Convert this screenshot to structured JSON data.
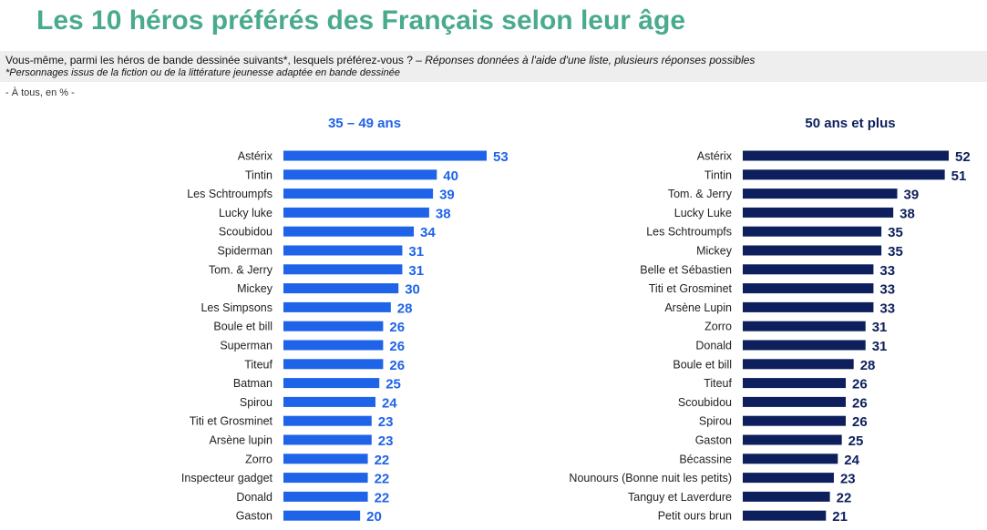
{
  "title": "Les 10 héros préférés des Français selon leur âge",
  "question": {
    "text": "Vous-même, parmi les héros de bande dessinée suivants*, lesquels préférez-vous ? –",
    "instruction": "Réponses données à l'aide d'une liste, plusieurs réponses possibles",
    "footnote": "*Personnages issus de la fiction ou de la littérature jeunesse adaptée en bande dessinée"
  },
  "base": "- À tous, en % -",
  "colors": {
    "left": "#1f63e8",
    "right": "#0d1f5c",
    "title": "#4aaa8e"
  },
  "chart_data": [
    {
      "type": "bar",
      "orientation": "horizontal",
      "title": "35 – 49 ans",
      "categories": [
        "Astérix",
        "Tintin",
        "Les Schtroumpfs",
        "Lucky luke",
        "Scoubidou",
        "Spiderman",
        "Tom. & Jerry",
        "Mickey",
        "Les Simpsons",
        "Boule et bill",
        "Superman",
        "Titeuf",
        "Batman",
        "Spirou",
        "Titi et Grosminet",
        "Arsène lupin",
        "Zorro",
        "Inspecteur gadget",
        "Donald",
        "Gaston"
      ],
      "values": [
        53,
        40,
        39,
        38,
        34,
        31,
        31,
        30,
        28,
        26,
        26,
        26,
        25,
        24,
        23,
        23,
        22,
        22,
        22,
        20
      ],
      "xlim": [
        0,
        53
      ]
    },
    {
      "type": "bar",
      "orientation": "horizontal",
      "title": "50 ans et plus",
      "categories": [
        "Astérix",
        "Tintin",
        "Tom. & Jerry",
        "Lucky Luke",
        "Les Schtroumpfs",
        "Mickey",
        "Belle et Sébastien",
        "Titi et Grosminet",
        "Arsène Lupin",
        "Zorro",
        "Donald",
        "Boule et bill",
        "Titeuf",
        "Scoubidou",
        "Spirou",
        "Gaston",
        "Bécassine",
        "Nounours (Bonne nuit les petits)",
        "Tanguy et Laverdure",
        "Petit ours brun"
      ],
      "values": [
        52,
        51,
        39,
        38,
        35,
        35,
        33,
        33,
        33,
        31,
        31,
        28,
        26,
        26,
        26,
        25,
        24,
        23,
        22,
        21
      ],
      "xlim": [
        0,
        52
      ]
    }
  ]
}
